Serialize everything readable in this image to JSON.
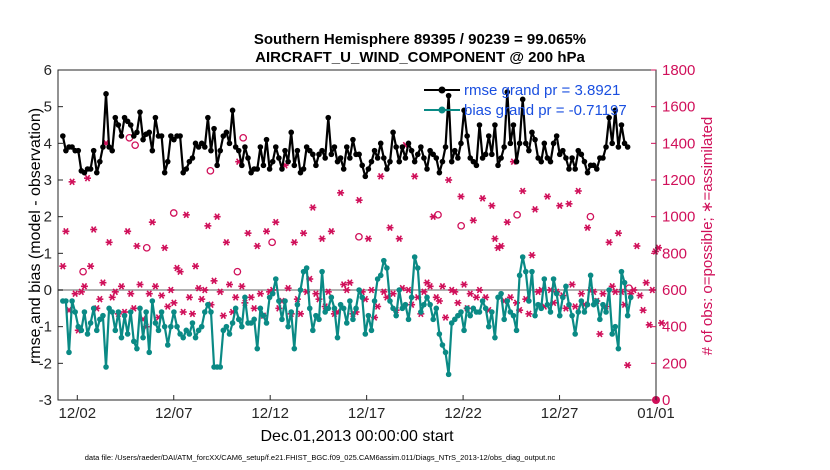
{
  "chart_data": {
    "type": "line",
    "title_line1": "Southern Hemisphere 89395 / 90239 = 99.065%",
    "title_line2": "AIRCRAFT_U_WIND_COMPONENT @ 200 hPa",
    "xlabel": "Dec.01,2013 00:00:00 start",
    "ylabel_left": "rmse and bias (model - observation)",
    "ylabel_right": "# of obs: o=possible; ∗=assimilated",
    "footnote": "data file: /Users/raeder/DAI/ATM_forcXX/CAM6_setup/f.e21.FHIST_BGC.f09_025.CAM6assim.011/Diags_NTrS_2013-12/obs_diag_output.nc",
    "x_tick_labels": [
      "12/02",
      "12/07",
      "12/12",
      "12/17",
      "12/22",
      "12/27",
      "01/01"
    ],
    "x_tick_days": [
      1,
      6,
      11,
      16,
      21,
      26,
      31
    ],
    "xlim_days": [
      0,
      31
    ],
    "ylim_left": [
      -3,
      6
    ],
    "y_ticks_left": [
      "-3",
      "-2",
      "-1",
      "0",
      "1",
      "2",
      "3",
      "4",
      "5",
      "6"
    ],
    "ylim_right": [
      0,
      1800
    ],
    "y_ticks_right": [
      "0",
      "200",
      "400",
      "600",
      "800",
      "1000",
      "1200",
      "1400",
      "1600",
      "1800"
    ],
    "colors": {
      "rmse": "#000000",
      "bias": "#0a8a85",
      "obs": "#d0105a",
      "zero_line": "#b0b0b0"
    },
    "legend": [
      {
        "name": "rmse",
        "label": "rmse grand pr = 3.8921"
      },
      {
        "name": "bias",
        "label": "bias grand pr = -0.71197"
      }
    ],
    "series": [
      {
        "name": "rmse",
        "values": [
          4.2,
          3.8,
          3.9,
          3.9,
          3.8,
          3.8,
          3.25,
          3.2,
          3.3,
          3.3,
          3.8,
          3.2,
          3.5,
          3.9,
          5.35,
          3.9,
          3.8,
          4.7,
          4.5,
          4.2,
          4.7,
          4.6,
          4.5,
          4.2,
          4.3,
          4.85,
          4.1,
          4.25,
          4.3,
          3.8,
          4.7,
          4.2,
          4.2,
          3.2,
          3.5,
          4.2,
          4.1,
          4.2,
          4.2,
          3.2,
          3.3,
          3.5,
          3.6,
          4.0,
          3.9,
          4.0,
          3.9,
          4.7,
          3.8,
          4.4,
          3.4,
          3.8,
          4.2,
          4.3,
          4.0,
          4.9,
          3.9,
          3.8,
          3.4,
          3.9,
          3.6,
          3.2,
          3.3,
          3.3,
          3.9,
          3.4,
          4.1,
          3.3,
          3.5,
          3.9,
          3.6,
          3.3,
          3.8,
          3.5,
          4.3,
          3.4,
          3.8,
          3.2,
          3.3,
          3.9,
          3.8,
          3.7,
          3.4,
          3.7,
          3.8,
          3.6,
          4.7,
          3.7,
          3.9,
          3.5,
          3.6,
          3.3,
          3.9,
          3.6,
          4.1,
          3.7,
          3.7,
          3.4,
          3.1,
          3.3,
          3.5,
          3.8,
          3.6,
          4.0,
          3.6,
          3.3,
          3.5,
          4.3,
          3.9,
          3.5,
          3.9,
          3.6,
          4.0,
          3.8,
          3.5,
          3.7,
          3.9,
          3.6,
          3.3,
          3.8,
          3.7,
          3.6,
          3.2,
          3.5,
          3.9,
          5.3,
          3.5,
          3.8,
          3.6,
          4.0,
          4.9,
          4.2,
          3.6,
          3.5,
          3.4,
          4.5,
          3.6,
          3.7,
          4.2,
          3.7,
          4.5,
          3.4,
          3.6,
          3.9,
          5.4,
          4.0,
          4.5,
          3.5,
          4.0,
          5.2,
          4.0,
          3.8,
          4.3,
          4.1,
          3.6,
          3.5,
          4.0,
          3.6,
          3.5,
          4.0,
          4.2,
          3.7,
          3.8,
          3.6,
          3.3,
          3.6,
          3.3,
          3.8,
          3.7,
          3.5,
          3.2,
          3.4,
          3.4,
          3.3,
          3.6,
          3.6,
          3.9,
          4.7,
          4.0,
          4.9,
          3.9,
          4.5,
          4.0,
          3.9
        ]
      },
      {
        "name": "bias",
        "values": [
          -0.3,
          -0.3,
          -1.7,
          -0.3,
          -0.6,
          -1.0,
          -1.1,
          -0.6,
          -1.2,
          -0.9,
          -0.5,
          -1.1,
          -0.8,
          -0.7,
          -2.1,
          -0.5,
          -0.6,
          -1.1,
          -0.6,
          -1.3,
          -0.7,
          -1.2,
          -0.6,
          -1.4,
          -1.6,
          -0.5,
          -1.3,
          -0.6,
          -1.7,
          -0.3,
          -0.9,
          -1.1,
          -0.6,
          -1.0,
          -1.5,
          -1.0,
          -0.6,
          -1.0,
          -1.2,
          -1.3,
          -1.1,
          -1.2,
          -0.9,
          -1.3,
          -1.1,
          -1.0,
          -0.6,
          -0.4,
          -0.6,
          -2.1,
          -2.1,
          -2.1,
          -1.1,
          -1.0,
          -1.2,
          -0.9,
          -0.5,
          -0.8,
          -1.0,
          -0.2,
          -0.9,
          -0.9,
          -0.8,
          -1.6,
          -0.5,
          -0.7,
          -0.9,
          -0.2,
          -0.1,
          0.3,
          -0.3,
          -0.8,
          -0.3,
          -1.0,
          -0.6,
          -1.6,
          -0.4,
          0.0,
          0.5,
          0.6,
          -0.5,
          -1.1,
          -0.7,
          -0.8,
          0.5,
          -0.6,
          -0.5,
          -0.2,
          -0.5,
          -1.3,
          -0.4,
          -0.5,
          -0.9,
          -0.3,
          -0.8,
          -0.5,
          0.0,
          -0.2,
          -1.2,
          -0.7,
          -1.1,
          -0.3,
          0.3,
          0.4,
          0.8,
          0.6,
          -0.3,
          -0.5,
          -0.7,
          0.0,
          -0.5,
          -0.4,
          -0.8,
          -0.2,
          0.9,
          0.6,
          -0.6,
          -0.4,
          -0.2,
          -0.4,
          -0.8,
          -0.5,
          -1.2,
          -1.5,
          -1.7,
          -2.3,
          -0.9,
          -0.8,
          -0.7,
          -0.6,
          -1.1,
          -0.5,
          -0.7,
          -0.5,
          -0.6,
          -0.6,
          -0.3,
          -0.5,
          -1.0,
          -0.6,
          -1.3,
          -0.2,
          -0.1,
          -0.8,
          -0.3,
          -0.6,
          -0.7,
          -1.1,
          0.4,
          0.9,
          0.5,
          -0.3,
          0.5,
          -0.7,
          -0.4,
          -0.5,
          0.3,
          -0.4,
          -0.6,
          0.3,
          -0.1,
          -0.7,
          -0.2,
          0.1,
          -0.4,
          -0.7,
          -1.2,
          -0.6,
          -0.3,
          -0.6,
          -0.4,
          0.4,
          -0.4,
          -0.3,
          -0.8,
          -0.4,
          -0.6,
          0.0,
          -1.2,
          -1.0,
          -1.6,
          0.5,
          0.2,
          -0.7,
          -0.2
        ]
      },
      {
        "name": "obs_assimilated",
        "values": [
          730,
          920,
          490,
          1190,
          580,
          380,
          590,
          620,
          1210,
          730,
          930,
          500,
          550,
          640,
          1400,
          860,
          560,
          590,
          470,
          620,
          480,
          920,
          580,
          500,
          840,
          630,
          440,
          400,
          580,
          970,
          620,
          450,
          570,
          830,
          510,
          600,
          530,
          720,
          700,
          480,
          1010,
          560,
          470,
          730,
          610,
          550,
          600,
          950,
          520,
          650,
          1000,
          590,
          460,
          860,
          630,
          480,
          560,
          1300,
          620,
          530,
          910,
          560,
          500,
          840,
          580,
          460,
          920,
          590,
          600,
          970,
          500,
          540,
          1280,
          610,
          470,
          860,
          550,
          470,
          910,
          590,
          660,
          1050,
          580,
          550,
          880,
          510,
          590,
          920,
          470,
          480,
          1130,
          630,
          600,
          640,
          470,
          480,
          1090,
          590,
          550,
          880,
          600,
          450,
          510,
          1220,
          590,
          560,
          940,
          580,
          490,
          880,
          610,
          1390,
          600,
          520,
          1220,
          560,
          470,
          590,
          640,
          620,
          1000,
          560,
          540,
          620,
          450,
          1200,
          600,
          590,
          530,
          1110,
          630,
          500,
          580,
          980,
          560,
          600,
          1100,
          560,
          490,
          1060,
          880,
          830,
          840,
          540,
          970,
          560,
          1300,
          530,
          490,
          1140,
          550,
          470,
          790,
          1040,
          590,
          600,
          510,
          1110,
          600,
          530,
          590,
          1060,
          570,
          500,
          1070,
          630,
          510,
          1140,
          580,
          520,
          940,
          600,
          590,
          540,
          360,
          580,
          510,
          860,
          620,
          590,
          910,
          590,
          520,
          190,
          580,
          600,
          840,
          570,
          490,
          640,
          410,
          600,
          810,
          830,
          420
        ]
      }
    ],
    "possible_markers": [
      {
        "day": 3.7,
        "obs": 1430
      },
      {
        "day": 9.6,
        "obs": 1430
      },
      {
        "day": 6.0,
        "obs": 1020
      },
      {
        "day": 11.1,
        "obs": 860
      },
      {
        "day": 4.6,
        "obs": 830
      },
      {
        "day": 7.9,
        "obs": 1250
      },
      {
        "day": 9.3,
        "obs": 700
      },
      {
        "day": 15.6,
        "obs": 890
      },
      {
        "day": 19.7,
        "obs": 1010
      },
      {
        "day": 20.9,
        "obs": 950
      },
      {
        "day": 23.8,
        "obs": 1010
      },
      {
        "day": 27.6,
        "obs": 1000
      },
      {
        "day": 4.0,
        "obs": 1390
      },
      {
        "day": 1.3,
        "obs": 700
      },
      {
        "day": 29.6,
        "obs": 610
      }
    ]
  }
}
